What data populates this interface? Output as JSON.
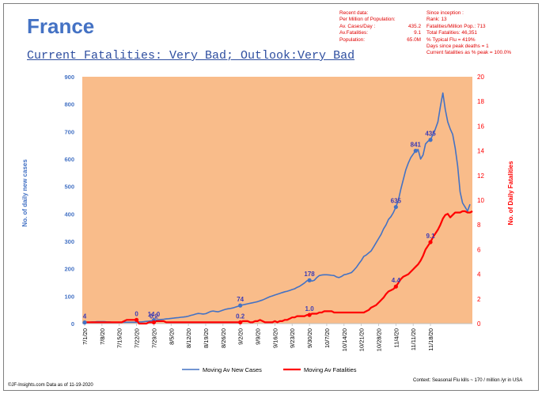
{
  "header": {
    "title": "France",
    "subtitle": "Current Fatalities: Very Bad; Outlook:Very Bad"
  },
  "recent": {
    "heading": "Recent data:",
    "subheading": "Per Million of Population:",
    "rows": [
      {
        "label": "Av. Cases/Day :",
        "value": "435.2"
      },
      {
        "label": "Av.Fatalities:",
        "value": "9.1"
      },
      {
        "label": "Population:",
        "value": "65.0M"
      }
    ]
  },
  "since": {
    "heading": "Since inception :",
    "lines": [
      "Rank: 13",
      "Fatalities/Million Pop.: 713",
      "Total Fatalities: 46,351",
      "% Typical Flu = 419%",
      "Days since peak deaths = 1",
      "Current fatalities as % peak = 100.0%"
    ]
  },
  "footer": {
    "left": "©JF-Insights.com  Data as of 11-19-2020",
    "right": "Context: Seasonal Flu kills ~ 170 / million /yr in USA"
  },
  "colors": {
    "plot_bg": "#F9BC8A",
    "cases": "#4472C4",
    "fatalities": "#FF0000",
    "title": "#4472C4",
    "stats_text": "#E00000"
  },
  "chart_data": {
    "type": "line",
    "ylabel": "No. of daily new  cases",
    "y2label": "No. of Daily Fatalities",
    "ylim": [
      0,
      900
    ],
    "y2lim": [
      0,
      20
    ],
    "yticks": [
      0,
      100,
      200,
      300,
      400,
      500,
      600,
      700,
      800,
      900
    ],
    "y2ticks": [
      0,
      2,
      4,
      6,
      8,
      10,
      12,
      14,
      16,
      18,
      20
    ],
    "xticks": [
      "7/1/20",
      "7/8/20",
      "7/15/20",
      "7/22/20",
      "7/29/20",
      "8/5/20",
      "8/12/20",
      "8/19/20",
      "8/26/20",
      "9/2/20",
      "9/9/20",
      "9/16/20",
      "9/23/20",
      "9/30/20",
      "10/7/20",
      "10/14/20",
      "10/21/20",
      "10/28/20",
      "11/4/20",
      "11/11/20",
      "11/18/20"
    ],
    "grid": false,
    "legend_position": "bottom",
    "series": [
      {
        "name": "Moving Av New Cases",
        "axis": "left",
        "values": [
          4,
          5,
          5,
          6,
          6,
          7,
          7,
          7,
          7,
          6,
          6,
          5,
          5,
          5,
          5,
          5,
          5,
          5,
          5,
          5,
          5,
          5,
          6,
          6,
          7,
          8,
          9,
          10,
          12,
          13,
          14,
          15,
          16,
          17,
          18,
          19,
          20,
          21,
          22,
          23,
          24,
          25,
          27,
          30,
          32,
          35,
          37,
          36,
          35,
          36,
          40,
          44,
          46,
          44,
          43,
          46,
          49,
          52,
          54,
          55,
          57,
          60,
          63,
          66,
          68,
          70,
          72,
          74,
          76,
          78,
          80,
          83,
          86,
          90,
          94,
          98,
          101,
          104,
          107,
          110,
          113,
          116,
          118,
          121,
          124,
          127,
          132,
          136,
          142,
          148,
          156,
          158,
          155,
          158,
          168,
          175,
          177,
          178,
          178,
          177,
          176,
          175,
          170,
          168,
          172,
          178,
          180,
          183,
          186,
          195,
          205,
          218,
          230,
          245,
          250,
          258,
          265,
          280,
          295,
          310,
          325,
          345,
          360,
          380,
          390,
          405,
          425,
          450,
          490,
          525,
          560,
          585,
          605,
          618,
          630,
          635,
          600,
          615,
          655,
          665,
          670,
          690,
          710,
          735,
          790,
          841,
          780,
          735,
          710,
          690,
          640,
          575,
          480,
          440,
          425,
          410,
          435
        ]
      },
      {
        "name": "Moving Av Fatalities",
        "axis": "right",
        "values": [
          0.1,
          0.1,
          0.1,
          0.1,
          0.1,
          0.1,
          0.1,
          0.1,
          0.1,
          0.1,
          0.1,
          0.1,
          0.1,
          0.1,
          0.1,
          0.1,
          0.2,
          0.3,
          0.3,
          0.3,
          0.3,
          0.3,
          0,
          0,
          0,
          0,
          0.1,
          0.1,
          0.1,
          0.2,
          0.2,
          0.2,
          0.2,
          0.1,
          0.1,
          0.1,
          0.1,
          0.1,
          0.1,
          0.1,
          0.1,
          0.1,
          0.1,
          0.1,
          0.1,
          0.1,
          0.1,
          0.1,
          0.1,
          0.1,
          0.1,
          0.1,
          0.1,
          0.1,
          0.1,
          0.1,
          0.1,
          0.1,
          0.1,
          0.1,
          0.1,
          0.1,
          0.1,
          0.1,
          0.2,
          0.2,
          0.2,
          0.1,
          0.1,
          0.2,
          0.2,
          0.3,
          0.2,
          0.1,
          0.1,
          0.1,
          0.1,
          0.2,
          0.1,
          0.2,
          0.2,
          0.3,
          0.3,
          0.4,
          0.5,
          0.5,
          0.6,
          0.6,
          0.6,
          0.6,
          0.7,
          0.7,
          0.8,
          0.8,
          0.8,
          0.9,
          0.9,
          1.0,
          1.0,
          1.0,
          1.0,
          0.9,
          0.9,
          0.9,
          0.9,
          0.9,
          0.9,
          0.9,
          0.9,
          0.9,
          0.9,
          0.9,
          0.9,
          0.9,
          1.0,
          1.1,
          1.3,
          1.4,
          1.5,
          1.7,
          1.9,
          2.1,
          2.4,
          2.6,
          2.7,
          2.8,
          3.0,
          3.3,
          3.6,
          3.8,
          3.9,
          4.0,
          4.2,
          4.4,
          4.6,
          4.8,
          5.1,
          5.5,
          6.0,
          6.3,
          6.6,
          7.0,
          7.3,
          7.6,
          8.0,
          8.5,
          8.8,
          8.9,
          8.6,
          8.8,
          9.0,
          9.0,
          9.0,
          9.1,
          9.1,
          9.0,
          9.0,
          9.1
        ]
      }
    ],
    "annotations": [
      {
        "series": "Moving Av New Cases",
        "day": 0,
        "label": "4"
      },
      {
        "series": "Moving Av New Cases",
        "day": 28,
        "label": "14.0"
      },
      {
        "series": "Moving Av New Cases",
        "day": 63,
        "label": "74"
      },
      {
        "series": "Moving Av New Cases",
        "day": 91,
        "label": "178"
      },
      {
        "series": "Moving Av New Cases",
        "day": 126,
        "label": "635"
      },
      {
        "series": "Moving Av New Cases",
        "day": 134,
        "label": "841"
      },
      {
        "series": "Moving Av New Cases",
        "day": 140,
        "label": "435"
      },
      {
        "series": "Moving Av Fatalities",
        "day": 21,
        "label": "0"
      },
      {
        "series": "Moving Av Fatalities",
        "day": 28,
        "label": "0.2"
      },
      {
        "series": "Moving Av Fatalities",
        "day": 63,
        "label": "0.2"
      },
      {
        "series": "Moving Av Fatalities",
        "day": 91,
        "label": "1.0"
      },
      {
        "series": "Moving Av Fatalities",
        "day": 126,
        "label": "4.4"
      },
      {
        "series": "Moving Av Fatalities",
        "day": 140,
        "label": "9.1"
      }
    ]
  }
}
